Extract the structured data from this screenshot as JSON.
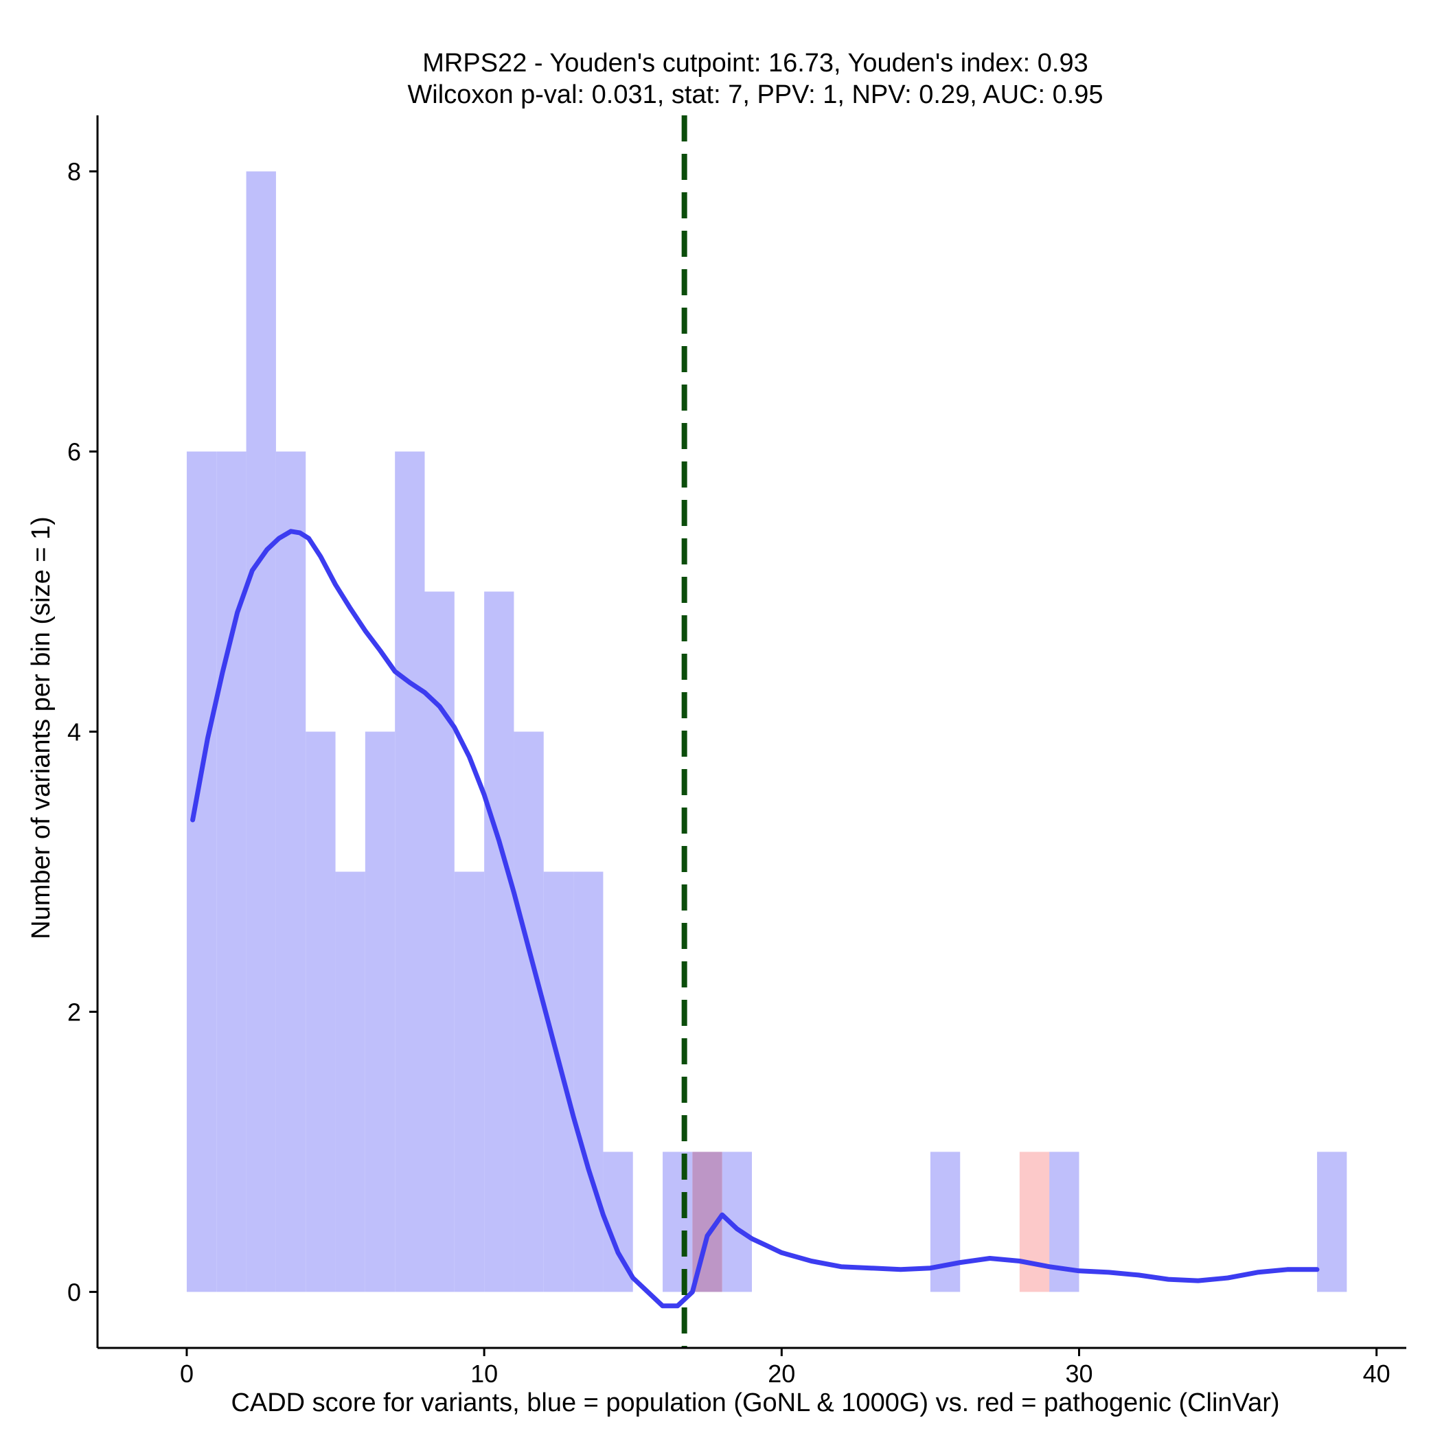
{
  "chart_data": {
    "type": "histogram",
    "title": "MRPS22 - Youden's cutpoint: 16.73, Youden's index: 0.93",
    "subtitle": "Wilcoxon p-val: 0.031, stat: 7, PPV: 1, NPV: 0.29, AUC: 0.95",
    "xlabel": "CADD score for variants, blue = population (GoNL & 1000G) vs. red = pathogenic (ClinVar)",
    "ylabel": "Number of variants per bin (size = 1)",
    "xlim": [
      -3,
      41
    ],
    "ylim": [
      -0.4,
      8.4
    ],
    "xticks": [
      0,
      10,
      20,
      30,
      40
    ],
    "yticks": [
      0,
      2,
      4,
      6,
      8
    ],
    "grid": false,
    "cutpoint": 16.73,
    "series": [
      {
        "kind": "histogram",
        "color": "#bfbffb",
        "bin_width": 1,
        "bins": [
          {
            "x0": 0,
            "count": 6
          },
          {
            "x0": 1,
            "count": 6
          },
          {
            "x0": 2,
            "count": 8
          },
          {
            "x0": 3,
            "count": 6
          },
          {
            "x0": 4,
            "count": 4
          },
          {
            "x0": 5,
            "count": 3
          },
          {
            "x0": 6,
            "count": 4
          },
          {
            "x0": 7,
            "count": 6
          },
          {
            "x0": 8,
            "count": 5
          },
          {
            "x0": 9,
            "count": 3
          },
          {
            "x0": 10,
            "count": 5
          },
          {
            "x0": 11,
            "count": 4
          },
          {
            "x0": 12,
            "count": 3
          },
          {
            "x0": 13,
            "count": 3
          },
          {
            "x0": 14,
            "count": 1
          },
          {
            "x0": 16,
            "count": 1
          },
          {
            "x0": 17,
            "count": 1
          },
          {
            "x0": 18,
            "count": 1
          },
          {
            "x0": 25,
            "count": 1
          },
          {
            "x0": 29,
            "count": 1
          },
          {
            "x0": 38,
            "count": 1
          }
        ]
      },
      {
        "kind": "histogram",
        "color": "#fbbfbf",
        "bin_width": 1,
        "bins": [
          {
            "x0": 17,
            "count": 1
          },
          {
            "x0": 28,
            "count": 1
          }
        ]
      },
      {
        "kind": "density",
        "color": "#3c3cf0",
        "x": [
          0.2,
          0.7,
          1.2,
          1.7,
          2.2,
          2.7,
          3.1,
          3.5,
          3.8,
          4.1,
          4.5,
          5.0,
          5.5,
          6.0,
          6.5,
          7.0,
          7.5,
          8.0,
          8.5,
          9.0,
          9.5,
          10.0,
          10.5,
          11.0,
          11.5,
          12.0,
          12.5,
          13.0,
          13.5,
          14.0,
          14.5,
          15.0,
          15.5,
          16.0,
          16.5,
          17.0,
          17.5,
          18.0,
          18.5,
          19.0,
          19.5,
          20.0,
          21.0,
          22.0,
          23.0,
          24.0,
          25.0,
          26.0,
          27.0,
          28.0,
          29.0,
          30.0,
          31.0,
          32.0,
          33.0,
          34.0,
          35.0,
          36.0,
          37.0,
          38.0
        ],
        "y": [
          3.37,
          3.95,
          4.42,
          4.85,
          5.15,
          5.3,
          5.38,
          5.43,
          5.42,
          5.38,
          5.25,
          5.05,
          4.88,
          4.72,
          4.58,
          4.43,
          4.35,
          4.28,
          4.18,
          4.03,
          3.82,
          3.55,
          3.22,
          2.85,
          2.45,
          2.05,
          1.65,
          1.25,
          0.88,
          0.55,
          0.28,
          0.1,
          0.0,
          -0.1,
          -0.1,
          0.0,
          0.4,
          0.55,
          0.45,
          0.38,
          0.33,
          0.28,
          0.22,
          0.18,
          0.17,
          0.16,
          0.17,
          0.21,
          0.24,
          0.22,
          0.18,
          0.15,
          0.14,
          0.12,
          0.09,
          0.08,
          0.1,
          0.14,
          0.16,
          0.16
        ]
      }
    ]
  }
}
